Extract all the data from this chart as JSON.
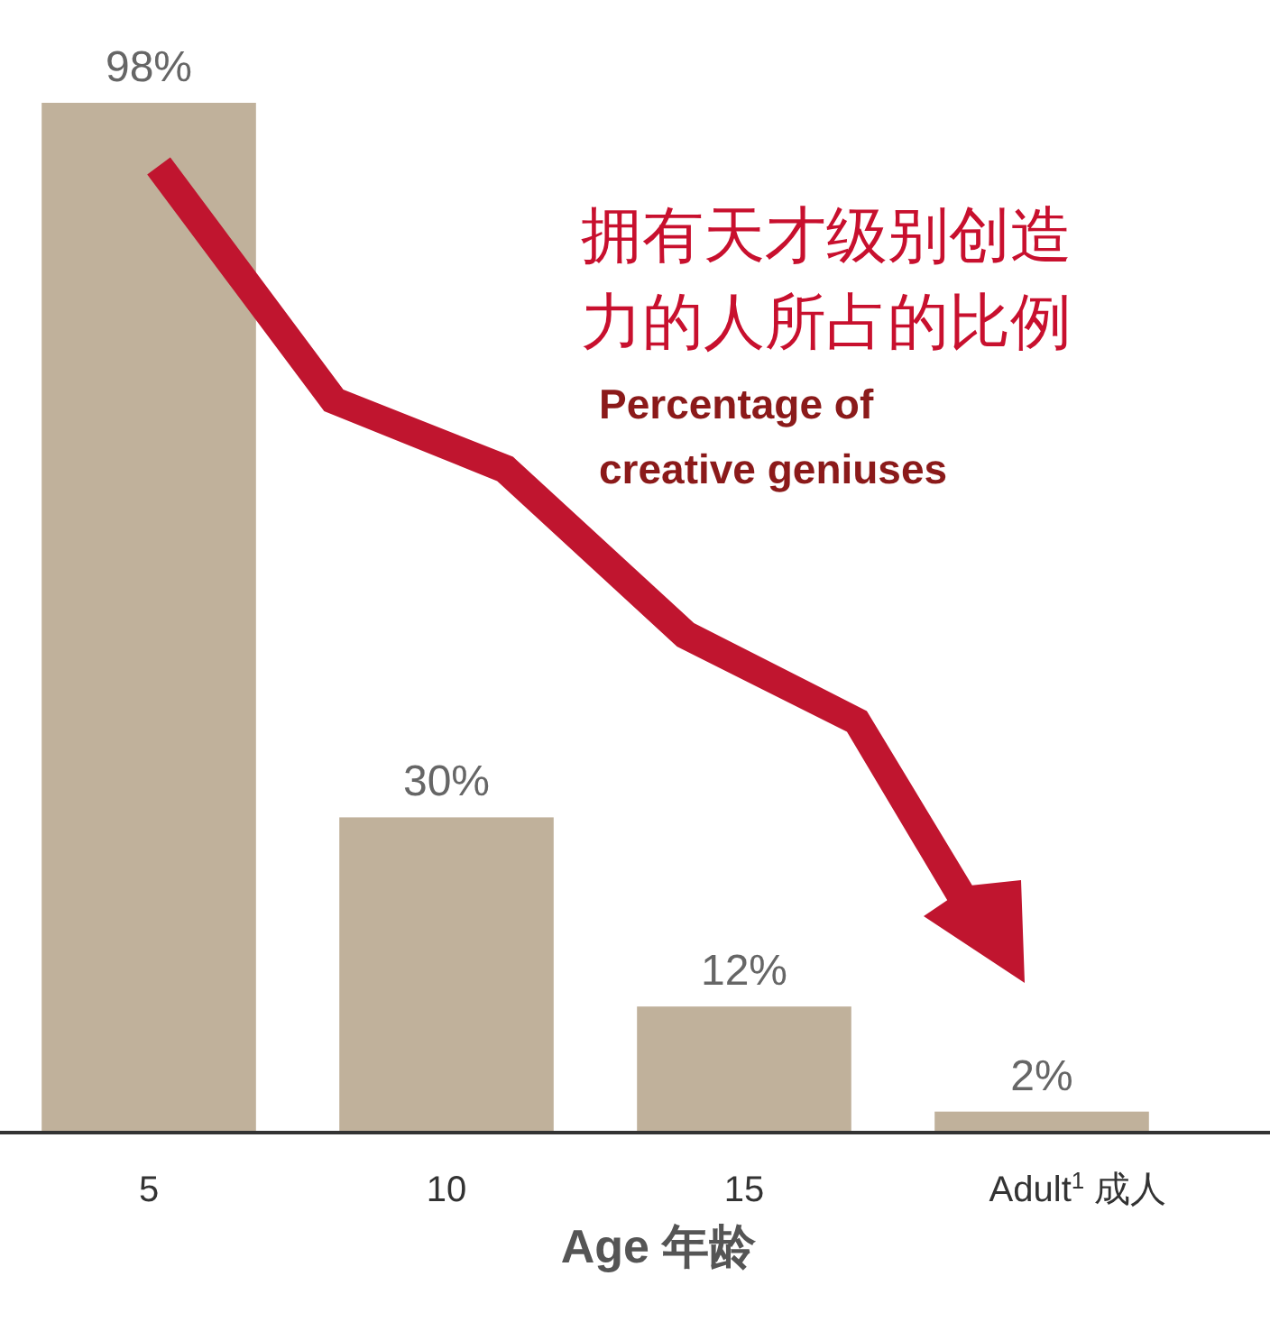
{
  "chart_data": {
    "type": "bar",
    "title": "拥有天才级别创造力的人所占的比例",
    "subtitle": "Percentage of creative geniuses",
    "xlabel": "Age 年龄",
    "categories": [
      "5",
      "10",
      "15",
      "Adult$^{1}$ 成人"
    ],
    "values": [
      98,
      30,
      12,
      2
    ],
    "value_labels": [
      "98%",
      "30%",
      "12%",
      "2%"
    ],
    "color": "#c0b19b"
  }
}
